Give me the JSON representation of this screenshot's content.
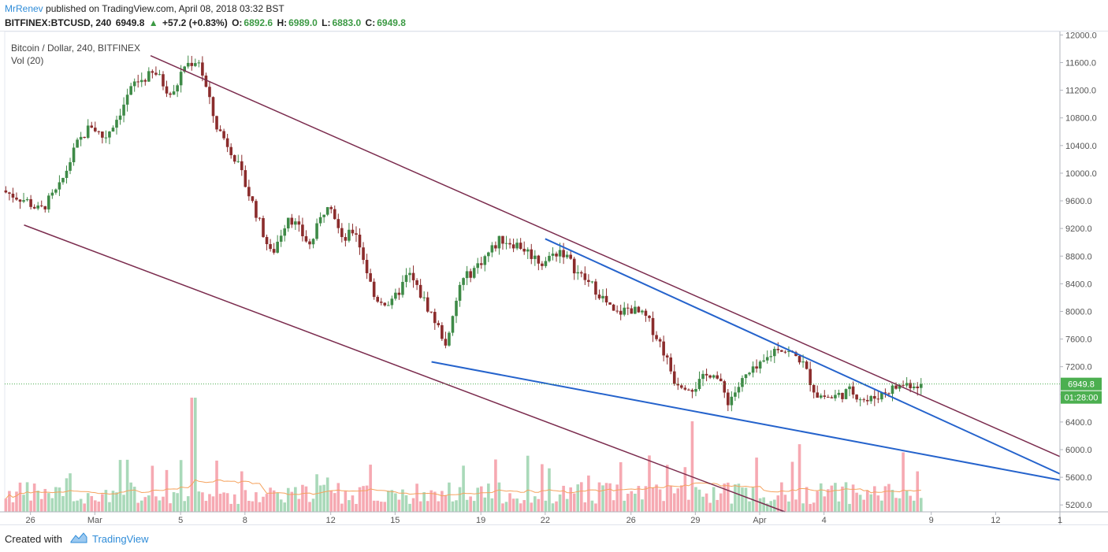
{
  "header": {
    "author": "MrRenev",
    "published": "published on TradingView.com, April 08, 2018 03:32 BST",
    "symbol": "BITFINEX:BTCUSD, 240",
    "last": "6949.8",
    "change_arrow": "▲",
    "change": "+57.2 (+0.83%)",
    "o_label": "O:",
    "o_value": "6892.6",
    "h_label": "H:",
    "h_value": "6989.0",
    "l_label": "L:",
    "l_value": "6883.0",
    "c_label": "C:",
    "c_value": "6949.8"
  },
  "legend": {
    "title": "Bitcoin / Dollar, 240, BITFINEX",
    "volume": "Vol (20)"
  },
  "footer": {
    "created_with": "Created with",
    "brand": "TradingView"
  },
  "colors": {
    "up": "#3e8a47",
    "down": "#8b2c2c",
    "vol_up": "#a9d9b9",
    "vol_down": "#f6a9b2",
    "trend_purple": "#7b2c4e",
    "trend_blue": "#2563cc",
    "price_tag": "#4caf50",
    "ma": "#f5a25d"
  },
  "chart_data": {
    "type": "candlestick",
    "title": "Bitcoin / Dollar, 240, BITFINEX",
    "y_axis": {
      "ticks": [
        5200.0,
        5600.0,
        6000.0,
        6400.0,
        6800.0,
        7200.0,
        7600.0,
        8000.0,
        8400.0,
        8800.0,
        9200.0,
        9600.0,
        10000.0,
        10400.0,
        10800.0,
        11200.0,
        11600.0,
        12000.0
      ],
      "labels": [
        "5200.0",
        "5600.0",
        "6000.0",
        "6400.0",
        "6800.0",
        "7200.0",
        "7600.0",
        "8000.0",
        "8400.0",
        "8800.0",
        "9200.0",
        "9600.0",
        "10000.0",
        "10400.0",
        "10800.0",
        "11200.0",
        "11600.0",
        "12000.0"
      ],
      "range": [
        5100,
        12050
      ]
    },
    "x_axis": {
      "labels": [
        "26",
        "Mar",
        "5",
        "8",
        "12",
        "15",
        "19",
        "22",
        "26",
        "29",
        "Apr",
        "4",
        "9",
        "12",
        "1"
      ],
      "day_index": [
        0,
        3,
        7,
        10,
        14,
        17,
        21,
        24,
        28,
        31,
        34,
        37,
        42,
        45,
        48
      ],
      "range_days": [
        -1.2,
        48.0
      ]
    },
    "last_price": {
      "value": 6949.8,
      "label": "6949.8",
      "countdown": "01:28:00"
    },
    "price_path": {
      "day": [
        -1.2,
        0,
        0.6,
        1.5,
        2.3,
        3.0,
        3.6,
        4.2,
        5.0,
        6.0,
        6.8,
        7.3,
        8.0,
        8.8,
        9.6,
        10.6,
        11.4,
        12.2,
        13.2,
        14.1,
        14.7,
        15.3,
        16.2,
        17.0,
        17.8,
        18.8,
        19.6,
        20.2,
        21.1,
        22.1,
        23.0,
        24.0,
        24.9,
        25.7,
        26.6,
        27.4,
        28.1,
        28.9,
        29.6,
        30.2,
        31.1,
        32.0,
        32.7,
        33.5,
        34.2,
        35.0,
        36.1,
        36.8,
        37.5,
        38.4,
        39.2,
        40.1,
        40.9,
        41.6
      ],
      "price": [
        9750,
        9600,
        9450,
        9780,
        10400,
        10700,
        10500,
        10800,
        11300,
        11450,
        11100,
        11550,
        11650,
        10700,
        10300,
        9500,
        8800,
        9400,
        8950,
        9650,
        9000,
        9200,
        8200,
        8100,
        8550,
        8000,
        7500,
        8400,
        8700,
        9050,
        8950,
        8700,
        8900,
        8550,
        8300,
        7950,
        8050,
        7900,
        7500,
        7000,
        6900,
        7150,
        6700,
        7050,
        7200,
        7500,
        7300,
        6800,
        6750,
        6850,
        6700,
        6850,
        6950,
        6950
      ]
    },
    "volume": {
      "label": "Vol (20)",
      "moving_average_period": 20
    },
    "trendlines": [
      {
        "name": "upper-resistance",
        "color": "purple",
        "from": {
          "day": 5.6,
          "price": 11700
        },
        "to": {
          "day": 48.0,
          "price": 5900
        }
      },
      {
        "name": "lower-support",
        "color": "purple",
        "from": {
          "day": -0.3,
          "price": 9250
        },
        "to": {
          "day": 48.0,
          "price": 3600
        }
      },
      {
        "name": "blue-resistance",
        "color": "blue",
        "from": {
          "day": 24.0,
          "price": 9050
        },
        "to": {
          "day": 48.0,
          "price": 5650
        }
      },
      {
        "name": "blue-support",
        "color": "blue",
        "from": {
          "day": 18.7,
          "price": 7270
        },
        "to": {
          "day": 48.0,
          "price": 5560
        }
      }
    ]
  }
}
